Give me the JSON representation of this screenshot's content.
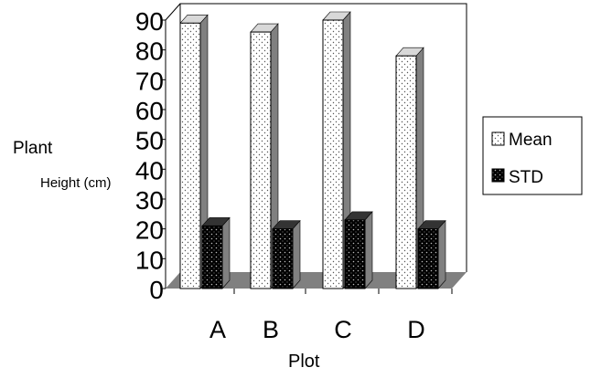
{
  "chart_data": {
    "type": "bar",
    "style": "3d",
    "categories": [
      "A",
      "B",
      "C",
      "D"
    ],
    "series": [
      {
        "name": "Mean",
        "values": [
          89,
          86,
          90,
          78
        ]
      },
      {
        "name": "STD",
        "values": [
          21,
          20,
          23,
          20
        ]
      }
    ],
    "ylabel_lines": [
      "Plant",
      "Height (cm)"
    ],
    "xlabel": "Plot",
    "yticks": [
      0,
      10,
      20,
      30,
      40,
      50,
      60,
      70,
      80,
      90
    ],
    "ylim": [
      0,
      90
    ],
    "grid": false,
    "legend_position": "right",
    "colors": {
      "mean_fill": "#ffffff",
      "std_fill": "#000000",
      "floor": "#808080",
      "side": "#808080"
    }
  }
}
